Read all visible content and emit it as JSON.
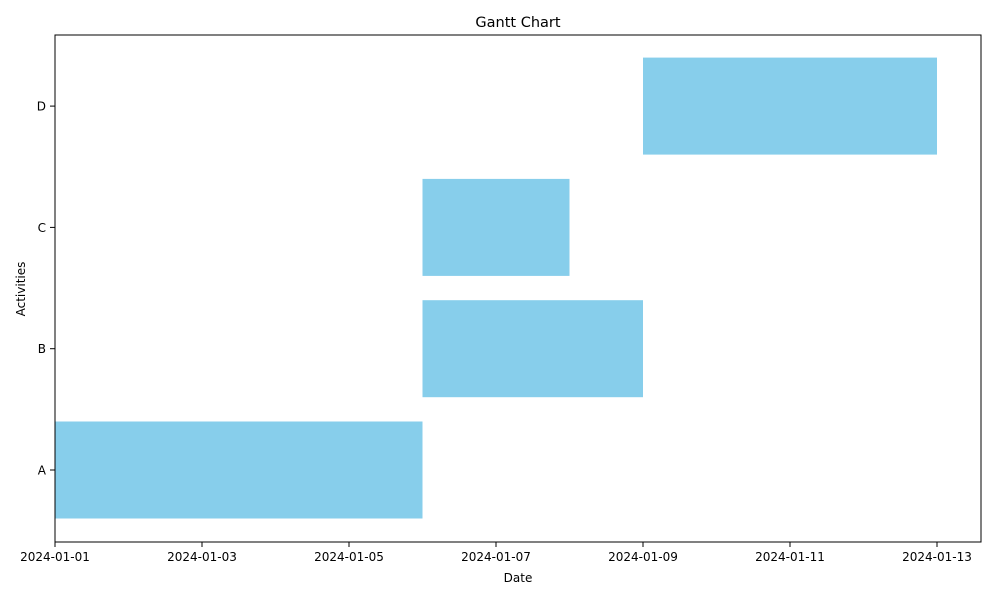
{
  "chart_data": {
    "type": "bar",
    "orientation": "horizontal",
    "title": "Gantt Chart",
    "xlabel": "Date",
    "ylabel": "Activities",
    "xlim": [
      "2024-01-01",
      "2024-01-13"
    ],
    "x_ticks": [
      "2024-01-01",
      "2024-01-03",
      "2024-01-05",
      "2024-01-07",
      "2024-01-09",
      "2024-01-11",
      "2024-01-13"
    ],
    "categories": [
      "A",
      "B",
      "C",
      "D"
    ],
    "tasks": [
      {
        "activity": "A",
        "start": "2024-01-01",
        "end": "2024-01-06"
      },
      {
        "activity": "B",
        "start": "2024-01-06",
        "end": "2024-01-09"
      },
      {
        "activity": "C",
        "start": "2024-01-06",
        "end": "2024-01-08"
      },
      {
        "activity": "D",
        "start": "2024-01-09",
        "end": "2024-01-13"
      }
    ],
    "bar_color": "#87ceeb",
    "grid": false,
    "legend": "none"
  }
}
